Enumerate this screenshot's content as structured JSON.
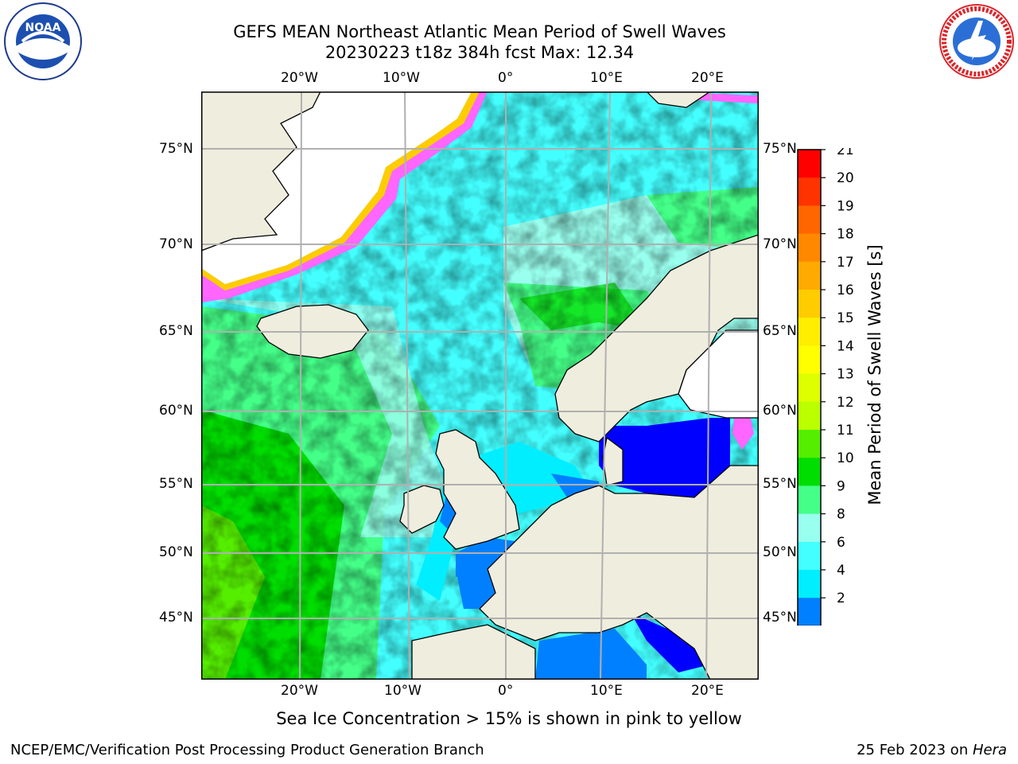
{
  "header": {
    "title_line1": "GEFS MEAN Northeast Atlantic Mean Period of Swell Waves",
    "title_line2": "20230223 t18z 384h fcst   Max: 12.34"
  },
  "logos": {
    "left": {
      "icon": "noaa-logo",
      "text": "NOAA"
    },
    "right": {
      "icon": "national-weather-service-logo",
      "text": "NATIONAL WEATHER SERVICE"
    }
  },
  "map": {
    "lon_labels": [
      "20°W",
      "10°W",
      "0°",
      "10°E",
      "20°E"
    ],
    "lat_labels": [
      "75°N",
      "70°N",
      "65°N",
      "60°N",
      "55°N",
      "50°N",
      "45°N"
    ],
    "colors": {
      "land": "#efedde",
      "grid": "#b0b0b0",
      "coast": "#000000"
    }
  },
  "colorbar": {
    "label": "Mean Period of Swell Waves [s]",
    "ticks": [
      "21",
      "20",
      "19",
      "18",
      "17",
      "16",
      "15",
      "14",
      "13",
      "12",
      "11",
      "10",
      "9",
      "8",
      "6",
      "4",
      "2"
    ],
    "colors": [
      "#ff0000",
      "#ff3300",
      "#ff6600",
      "#ff8800",
      "#ffaa00",
      "#ffcc00",
      "#ffee00",
      "#ffff00",
      "#ddff00",
      "#bbff00",
      "#55ee00",
      "#00dd00",
      "#44ff88",
      "#99ffee",
      "#44ffff",
      "#00eeff",
      "#0080ff"
    ],
    "extend_color": "#0000ff"
  },
  "notes": {
    "sea_ice": "Sea Ice Concentration > 15% is shown in pink to yellow"
  },
  "footer": {
    "left": "NCEP/EMC/Verification Post Processing Product Generation Branch",
    "right_prefix": "25 Feb 2023 on ",
    "right_host": "Hera"
  }
}
